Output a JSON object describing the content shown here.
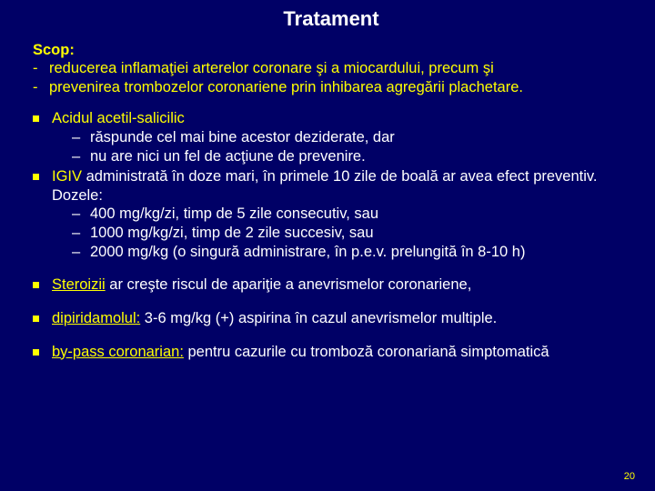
{
  "title": "Tratament",
  "scop": {
    "label": "Scop:",
    "items": [
      "reducerea inflamaţiei arterelor coronare şi a miocardului, precum şi",
      "prevenirea trombozelor coronariene prin inhibarea agregării plachetare."
    ]
  },
  "block1": {
    "item1_lead": "Acidul acetil-salicilic",
    "item1_subs": [
      "răspunde cel mai bine acestor deziderate, dar",
      "nu are nici un fel de acţiune de prevenire."
    ],
    "item2_lead": "IGIV",
    "item2_tail": " administrată în doze mari, în primele 10 zile de boală ar avea efect preventiv. Dozele:",
    "item2_subs": [
      " 400 mg/kg/zi, timp de 5 zile consecutiv, sau",
      "1000 mg/kg/zi, timp de 2 zile succesiv, sau",
      "2000 mg/kg (o singură administrare, în p.e.v. prelungită în 8-10 h)"
    ]
  },
  "block2": {
    "steroid_lead": "Steroizii",
    "steroid_tail": " ar creşte riscul de apariţie a anevrismelor coronariene,",
    "dipir_lead": "dipiridamolul:",
    "dipir_tail": " 3-6 mg/kg (+) aspirina în cazul anevrismelor multiple.",
    "bypass_lead": "by-pass coronarian:",
    "bypass_tail": " pentru cazurile cu tromboză coronariană simptomatică"
  },
  "page": "20",
  "colors": {
    "bg": "#000066",
    "accent": "#ffff00",
    "text": "#ffffff"
  }
}
